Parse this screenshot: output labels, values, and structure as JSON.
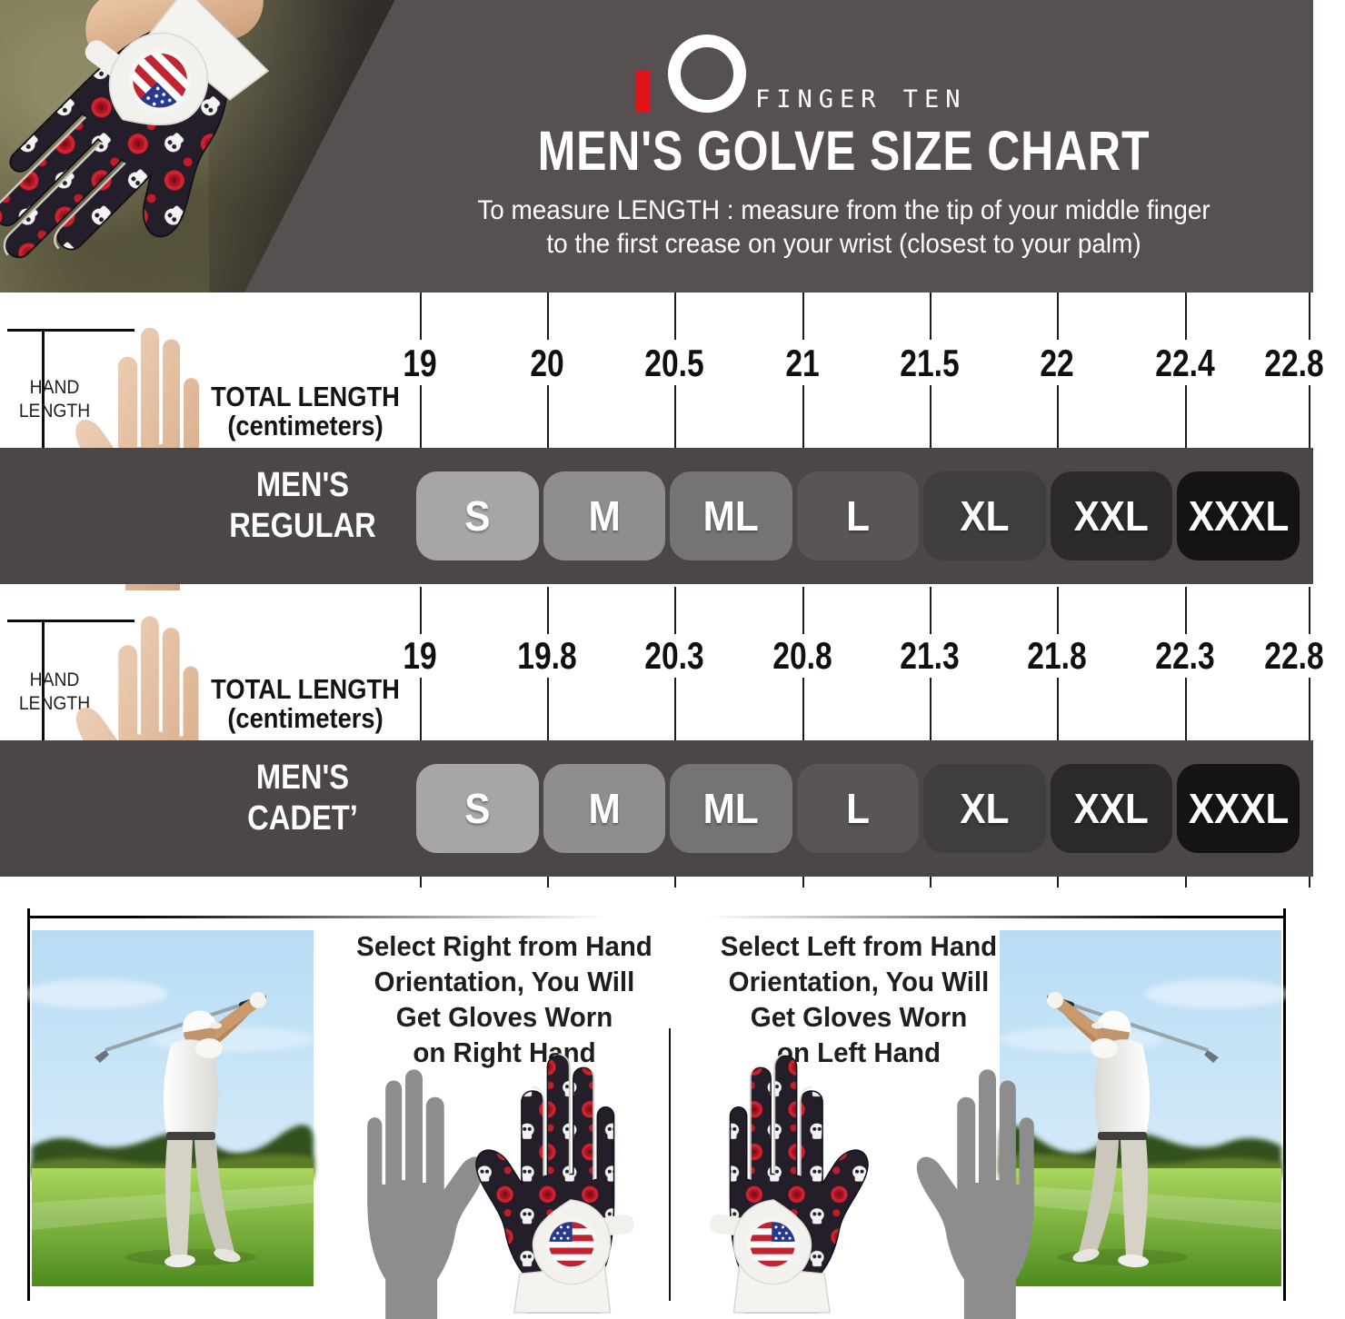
{
  "header": {
    "brand": "FINGER TEN",
    "title": "MEN'S GOLVE SIZE CHART",
    "subtitle_line1": "To measure LENGTH : measure from the tip of your middle finger",
    "subtitle_line2": "to the first crease on your wrist (closest to your palm)"
  },
  "chart_data": {
    "type": "table",
    "title": "MEN'S GOLVE SIZE CHART",
    "unit": "centimeters",
    "left_axis_label": [
      "TOTAL LENGTH",
      "(centimeters)"
    ],
    "hand_label": [
      "HAND",
      "LENGTH"
    ],
    "sizes": [
      "S",
      "M",
      "ML",
      "L",
      "XL",
      "XXL",
      "XXXL"
    ],
    "rows": [
      {
        "fit": "MEN'S REGULAR",
        "label_line1": "MEN'S",
        "label_line2": "REGULAR",
        "lengths_cm": [
          "19",
          "20",
          "20.5",
          "21",
          "21.5",
          "22",
          "22.4",
          "22.8"
        ]
      },
      {
        "fit": "MEN'S CADET’",
        "label_line1": "MEN'S",
        "label_line2": "CADET’",
        "lengths_cm": [
          "19",
          "19.8",
          "20.3",
          "20.8",
          "21.3",
          "21.8",
          "22.3",
          "22.8"
        ]
      }
    ]
  },
  "footer": {
    "panels": [
      {
        "lines": [
          "Select Right from Hand",
          "Orientation, You Will",
          "Get Gloves Worn",
          "on Right Hand"
        ]
      },
      {
        "lines": [
          "Select Left from Hand",
          "Orientation, You Will",
          "Get Gloves Worn",
          "on Left Hand"
        ]
      }
    ]
  },
  "colors": {
    "header_bg": "#565150",
    "band_bg": "#4b4748",
    "accent_red": "#e2121b",
    "size_ramp": [
      "#a8a6a5",
      "#8f8d8d",
      "#767374",
      "#595556",
      "#403d3f",
      "#2b292b",
      "#151316"
    ]
  }
}
